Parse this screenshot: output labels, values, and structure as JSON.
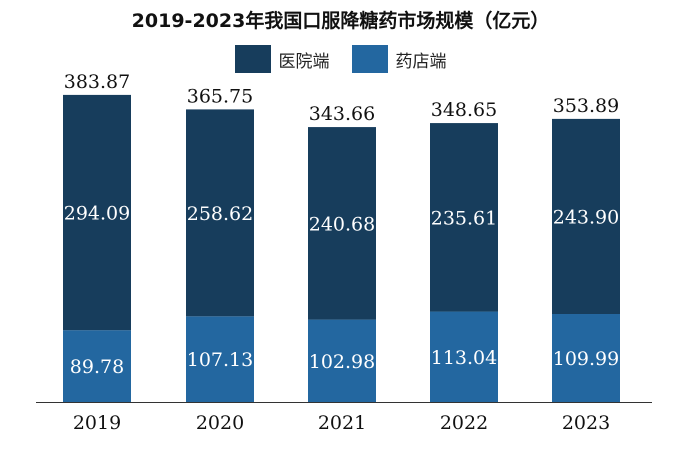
{
  "chart_data": {
    "type": "bar",
    "stacked": true,
    "title": "2019-2023年我国口服降糖药市场规模（亿元）",
    "categories": [
      "2019",
      "2020",
      "2021",
      "2022",
      "2023"
    ],
    "series": [
      {
        "name": "医院端",
        "values": [
          294.09,
          258.62,
          240.68,
          235.61,
          243.9
        ],
        "labels": [
          "294.09",
          "258.62",
          "240.68",
          "235.61",
          "243.90"
        ],
        "color": "#173d5c"
      },
      {
        "name": "药店端",
        "values": [
          89.78,
          107.13,
          102.98,
          113.04,
          109.99
        ],
        "labels": [
          "89.78",
          "107.13",
          "102.98",
          "113.04",
          "109.99"
        ],
        "color": "#2367a0"
      }
    ],
    "totals": [
      "383.87",
      "365.75",
      "343.66",
      "348.65",
      "353.89"
    ],
    "ylim": [
      0,
      400
    ],
    "grid": false,
    "legend_position": "top"
  }
}
